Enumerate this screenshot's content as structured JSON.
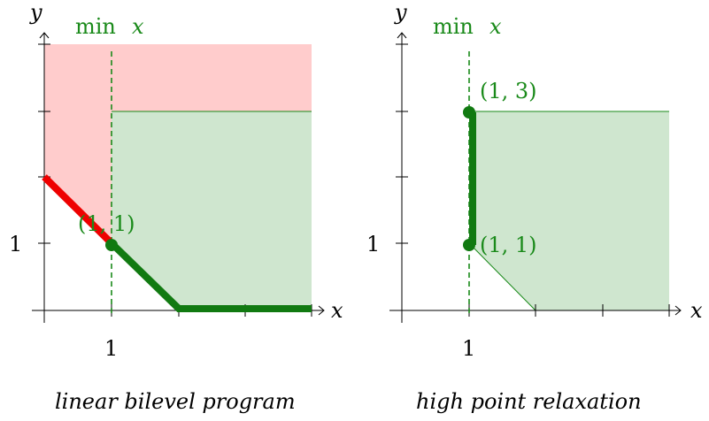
{
  "colors": {
    "green": "#1a8a1a",
    "green_dark": "#117a11",
    "green_fill": "#cfe6cf",
    "red": "#ee0000",
    "red_fill": "#ffcccc"
  },
  "left": {
    "y_axis_label": "y",
    "x_axis_label": "x",
    "objective_label": "min",
    "objective_var": "x",
    "x_tick_label": "1",
    "y_tick_label": "1",
    "point_label": "(1, 1)",
    "caption": "linear bilevel program"
  },
  "right": {
    "y_axis_label": "y",
    "x_axis_label": "x",
    "objective_label": "min",
    "objective_var": "x",
    "x_tick_label": "1",
    "y_tick_label": "1",
    "point_label_top": "(1, 3)",
    "point_label_bottom": "(1, 1)",
    "caption": "high point relaxation"
  }
}
